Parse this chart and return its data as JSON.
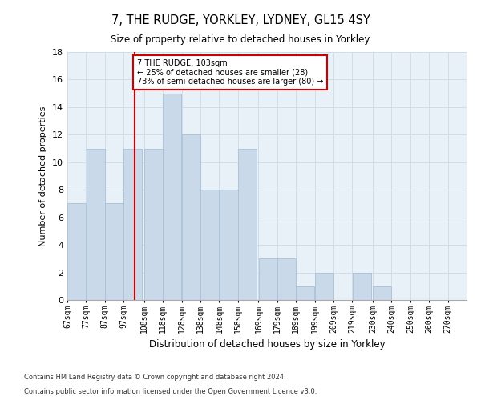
{
  "title1": "7, THE RUDGE, YORKLEY, LYDNEY, GL15 4SY",
  "title2": "Size of property relative to detached houses in Yorkley",
  "xlabel": "Distribution of detached houses by size in Yorkley",
  "ylabel": "Number of detached properties",
  "footnote1": "Contains HM Land Registry data © Crown copyright and database right 2024.",
  "footnote2": "Contains public sector information licensed under the Open Government Licence v3.0.",
  "bins_left": [
    67,
    77,
    87,
    97,
    108,
    118,
    128,
    138,
    148,
    158,
    169,
    179,
    189,
    199,
    209,
    219,
    230,
    240,
    250,
    260
  ],
  "bin_width": 10,
  "bar_heights": [
    7,
    11,
    7,
    11,
    11,
    15,
    12,
    8,
    8,
    11,
    3,
    3,
    1,
    2,
    0,
    2,
    1,
    0,
    0,
    0
  ],
  "bar_color": "#c9d9ea",
  "bar_edgecolor": "#a8c0d6",
  "grid_color": "#d0dce8",
  "vline_x": 103,
  "vline_color": "#cc0000",
  "annotation_text": "7 THE RUDGE: 103sqm\n← 25% of detached houses are smaller (28)\n73% of semi-detached houses are larger (80) →",
  "annotation_box_edgecolor": "#cc0000",
  "ylim": [
    0,
    18
  ],
  "yticks": [
    0,
    2,
    4,
    6,
    8,
    10,
    12,
    14,
    16,
    18
  ],
  "tick_labels": [
    "67sqm",
    "77sqm",
    "87sqm",
    "97sqm",
    "108sqm",
    "118sqm",
    "128sqm",
    "138sqm",
    "148sqm",
    "158sqm",
    "169sqm",
    "179sqm",
    "189sqm",
    "199sqm",
    "209sqm",
    "219sqm",
    "230sqm",
    "240sqm",
    "250sqm",
    "260sqm",
    "270sqm"
  ],
  "background_color": "#ffffff",
  "plot_bg_color": "#e8f0f8"
}
